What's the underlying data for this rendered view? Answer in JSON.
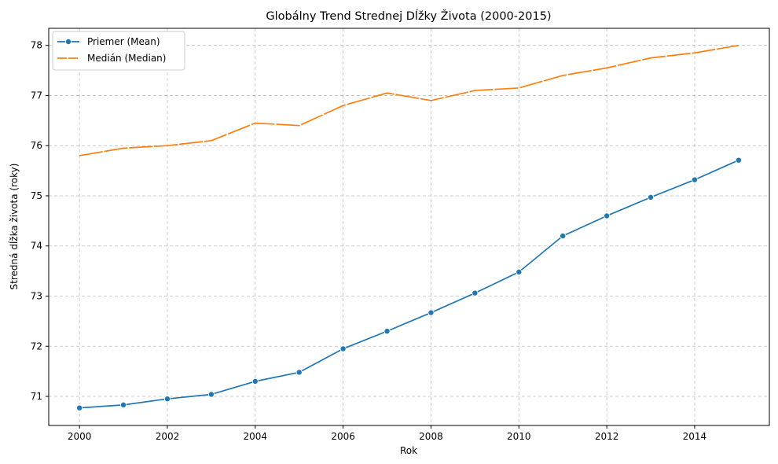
{
  "chart_data": {
    "type": "line",
    "title": "Globálny Trend Strednej Dĺžky Života (2000-2015)",
    "xlabel": "Rok",
    "ylabel": "Stredná dĺžka života (roky)",
    "xlim": [
      1999.3,
      2015.7
    ],
    "ylim": [
      70.42,
      78.34
    ],
    "xticks": [
      2000,
      2002,
      2004,
      2006,
      2008,
      2010,
      2012,
      2014
    ],
    "yticks": [
      71,
      72,
      73,
      74,
      75,
      76,
      77,
      78
    ],
    "grid": true,
    "legend_position": "top-left",
    "x": [
      2000,
      2001,
      2002,
      2003,
      2004,
      2005,
      2006,
      2007,
      2008,
      2009,
      2010,
      2011,
      2012,
      2013,
      2014,
      2015
    ],
    "series": [
      {
        "name": "Priemer (Mean)",
        "color": "#1f77b4",
        "marker": "circle",
        "dash": "solid",
        "values": [
          70.77,
          70.83,
          70.95,
          71.04,
          71.3,
          71.48,
          71.95,
          72.3,
          72.67,
          73.06,
          73.48,
          74.2,
          74.6,
          74.97,
          75.32,
          75.71
        ]
      },
      {
        "name": "Medián (Median)",
        "color": "#ff7f0e",
        "marker": "none",
        "dash": "dashed",
        "values": [
          75.8,
          75.95,
          76.0,
          76.1,
          76.45,
          76.4,
          76.8,
          77.05,
          76.9,
          77.1,
          77.15,
          77.4,
          77.55,
          77.75,
          77.85,
          78.0
        ]
      }
    ]
  }
}
